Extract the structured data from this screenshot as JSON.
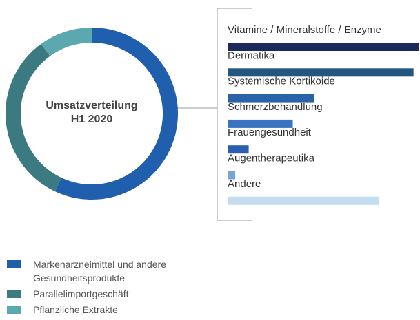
{
  "chart_data": [
    {
      "type": "pie",
      "title": "Umsatzverteilung",
      "subtitle": "H1 2020",
      "categories": [
        "Markenarzneimittel und andere Gesundheitsprodukte",
        "Parallelimportgeschäft",
        "Pflanzliche Extrakte"
      ],
      "values": [
        57,
        33,
        10
      ],
      "colors": [
        "#1f5fad",
        "#3a7a80",
        "#5ba8b0"
      ]
    },
    {
      "type": "bar",
      "orientation": "horizontal",
      "categories": [
        "Vitamine / Mineralstoffe / Enzyme",
        "Dermatika",
        "Systemische Kortikoide",
        "Schmerzbehandlung",
        "Frauengesundheit",
        "Augentherapeutika",
        "Andere"
      ],
      "values": [
        100,
        97,
        45,
        34,
        11,
        4,
        79
      ],
      "colors": [
        "#1b2a5a",
        "#24577f",
        "#2a63a8",
        "#3a74c0",
        "#2b5fae",
        "#7aa4d8",
        "#c3dcf1"
      ]
    }
  ]
}
